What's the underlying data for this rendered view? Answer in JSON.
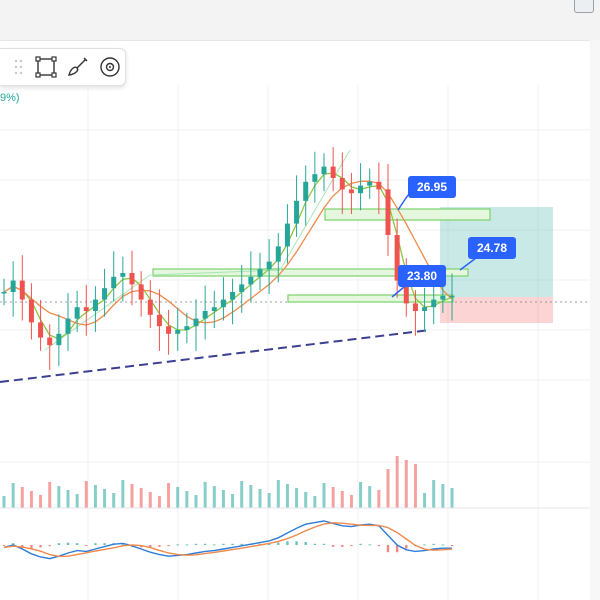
{
  "top_bar": {
    "corner_icon": "panel-icon"
  },
  "toolbar": {
    "drag_handle_icon": "drag-handle-icon",
    "tools": [
      {
        "name": "select-rectangle-icon"
      },
      {
        "name": "brush-icon"
      },
      {
        "name": "target-icon"
      }
    ]
  },
  "header": {
    "change_pct": "9%)"
  },
  "labels": {
    "label_1": "26.95",
    "label_2": "24.78",
    "label_3": "23.80"
  },
  "colors": {
    "up": "#26a69a",
    "down": "#ef5350",
    "box_line": "#7ad36c",
    "box_fill": "#e6f7df",
    "trendline": "#3b3f8f",
    "ma_orange": "#f08a4b",
    "ma_green": "#8cc63f",
    "macd_blue": "#2f7cd6",
    "signal_orange": "#f08a4b",
    "tag_blue": "#2962ff",
    "profit_zone": "#26a69a",
    "loss_zone": "#ef5350"
  },
  "chart_data": {
    "type": "candlestick",
    "price_levels": [
      26.95,
      24.78,
      23.8
    ],
    "close_approx": [
      24.0,
      24.3,
      23.8,
      23.2,
      22.8,
      22.6,
      22.9,
      23.3,
      23.6,
      23.5,
      23.8,
      24.1,
      24.4,
      24.5,
      24.2,
      23.8,
      23.4,
      23.1,
      22.9,
      23.0,
      23.1,
      23.3,
      23.5,
      23.6,
      23.8,
      24.0,
      24.2,
      24.4,
      24.6,
      24.8,
      25.2,
      25.8,
      26.4,
      26.9,
      27.1,
      27.3,
      27.0,
      26.7,
      26.6,
      26.8,
      26.9,
      26.7,
      25.5,
      24.3,
      23.7,
      23.5,
      23.6,
      23.8,
      23.9,
      23.9
    ]
  }
}
